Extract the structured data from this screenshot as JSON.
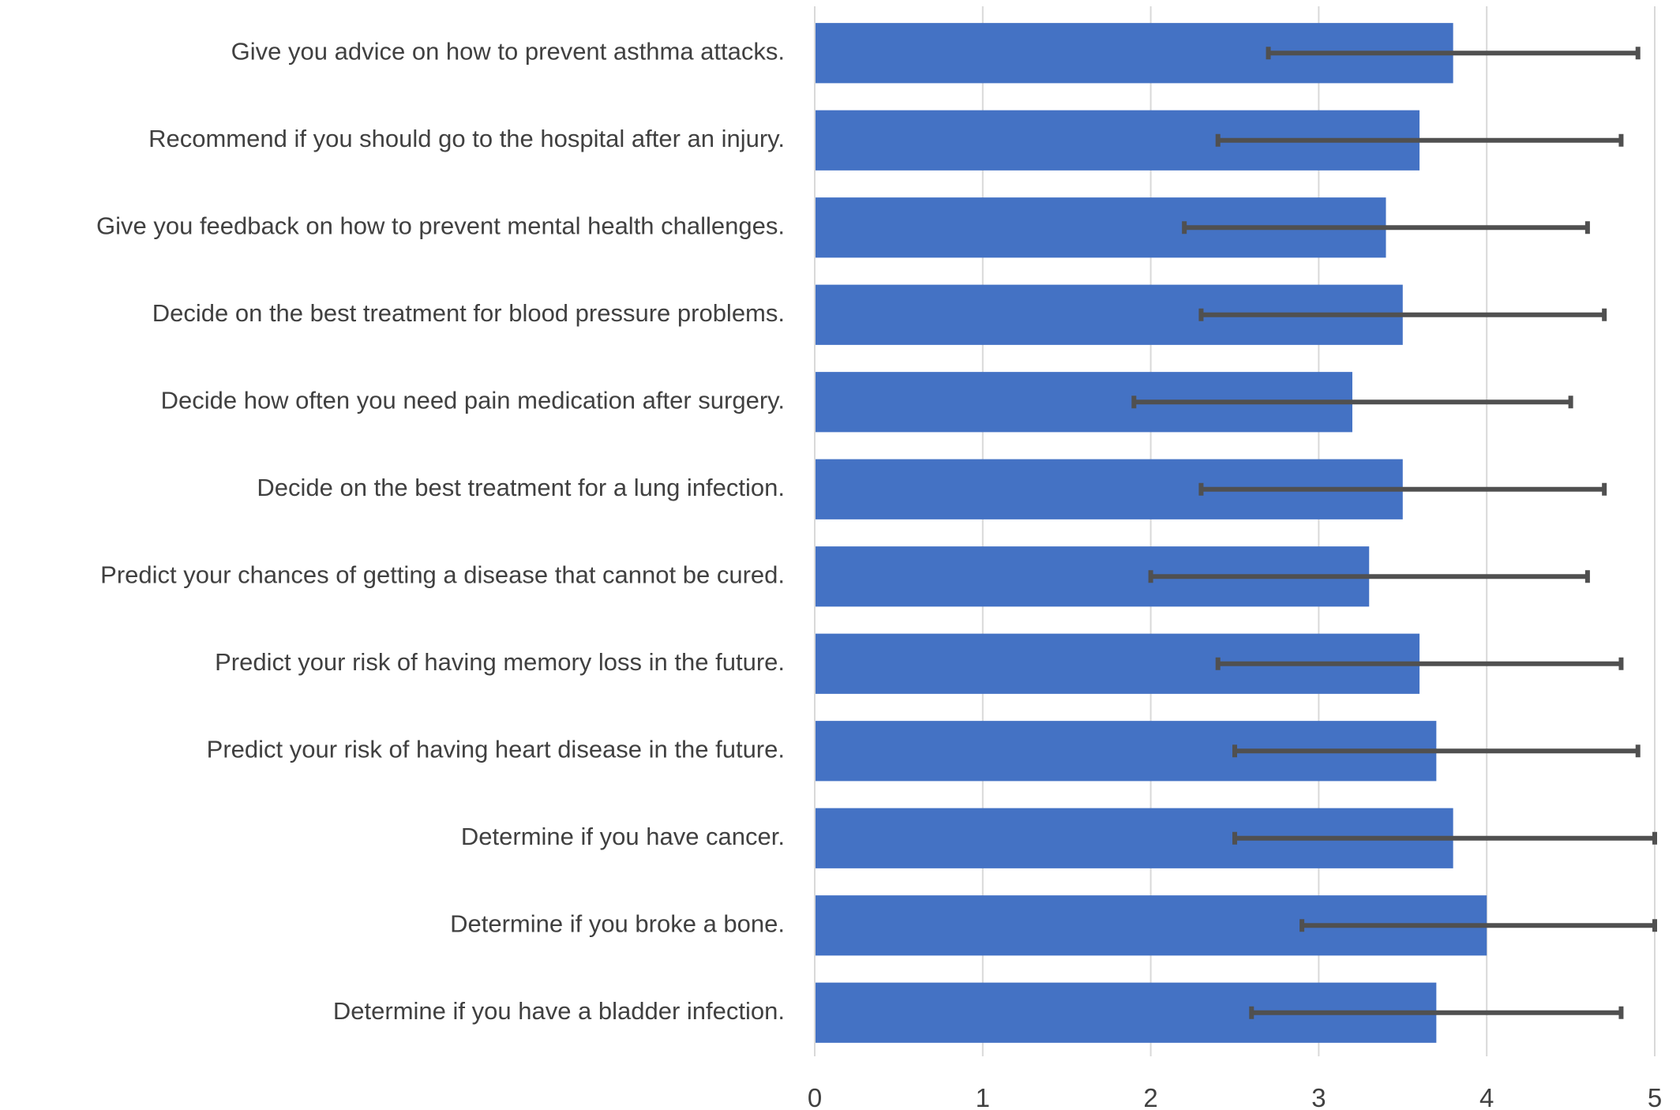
{
  "chart_data": {
    "type": "bar",
    "orientation": "horizontal",
    "categories": [
      "Give you advice on how to prevent asthma attacks.",
      "Recommend if you should go to the hospital after an injury.",
      "Give you feedback on how to prevent mental health challenges.",
      "Decide on the best treatment for blood pressure problems.",
      "Decide how often you need pain medication after surgery.",
      "Decide on the best treatment for a lung infection.",
      "Predict your chances of getting a disease that cannot be cured.",
      "Predict your risk of having memory loss in the future.",
      "Predict your risk of having heart disease in the future.",
      "Determine if you have cancer.",
      "Determine if you broke a bone.",
      "Determine if you have a bladder infection."
    ],
    "values": [
      3.8,
      3.6,
      3.4,
      3.5,
      3.2,
      3.5,
      3.3,
      3.6,
      3.7,
      3.8,
      4.0,
      3.7
    ],
    "error": [
      1.1,
      1.2,
      1.2,
      1.2,
      1.3,
      1.2,
      1.3,
      1.2,
      1.2,
      1.3,
      1.1,
      1.1
    ],
    "xlim": [
      0,
      5
    ],
    "xticks": [
      "0",
      "1",
      "2",
      "3",
      "4",
      "5"
    ],
    "xlabel": "",
    "ylabel": "",
    "title": "",
    "grid": "vertical",
    "legend": "none",
    "colors": {
      "bar": "#4472C4",
      "error_bar": "#505050",
      "grid": "#D9D9D9",
      "text": "#404040"
    }
  }
}
